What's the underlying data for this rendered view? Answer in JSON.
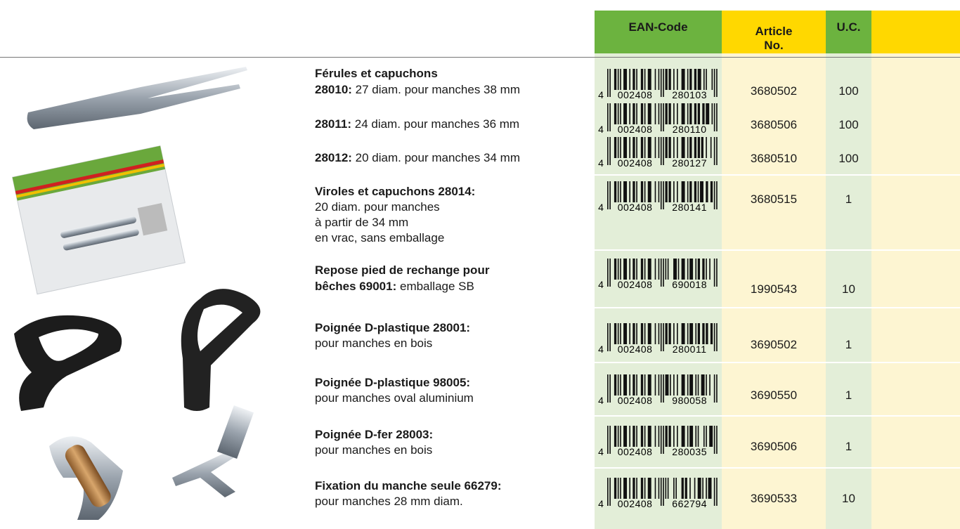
{
  "header": {
    "ean": "EAN-Code",
    "article": [
      "Article",
      "No."
    ],
    "uc": "U.C."
  },
  "rows": [
    {
      "lines": [
        {
          "bold": "Férules et capuchons"
        },
        {
          "bold": "28010:",
          "text": "27 diam. pour manches 38 mm"
        }
      ],
      "ean": {
        "lead": "4",
        "left": "002408",
        "right": "280103"
      },
      "article": 3680502,
      "uc": 100
    },
    {
      "lines": [
        {
          "bold": "28011:",
          "text": "24 diam. pour manches 36 mm"
        }
      ],
      "ean": {
        "lead": "4",
        "left": "002408",
        "right": "280110"
      },
      "article": 3680506,
      "uc": 100
    },
    {
      "lines": [
        {
          "bold": "28012:",
          "text": "20 diam. pour manches 34 mm"
        }
      ],
      "ean": {
        "lead": "4",
        "left": "002408",
        "right": "280127"
      },
      "article": 3680510,
      "uc": 100
    },
    {
      "lines": [
        {
          "bold": "Viroles et capuchons 28014:"
        },
        {
          "text": "20 diam. pour manches"
        },
        {
          "text": "à partir de 34 mm"
        },
        {
          "text": "en vrac, sans emballage"
        }
      ],
      "ean": {
        "lead": "4",
        "left": "002408",
        "right": "280141"
      },
      "article": 3680515,
      "uc": 1
    },
    {
      "lines": [
        {
          "bold": "Repose pied de rechange pour"
        },
        {
          "bold": "bêches 69001:",
          "text": "emballage SB"
        }
      ],
      "ean": {
        "lead": "4",
        "left": "002408",
        "right": "690018"
      },
      "article": 1990543,
      "uc": 10
    },
    {
      "lines": [
        {
          "bold": "Poignée D-plastique 28001:"
        },
        {
          "text": "pour manches en bois"
        }
      ],
      "ean": {
        "lead": "4",
        "left": "002408",
        "right": "280011"
      },
      "article": 3690502,
      "uc": 1
    },
    {
      "lines": [
        {
          "bold": "Poignée D-plastique 98005:"
        },
        {
          "text": "pour manches oval aluminium"
        }
      ],
      "ean": {
        "lead": "4",
        "left": "002408",
        "right": "980058"
      },
      "article": 3690550,
      "uc": 1
    },
    {
      "lines": [
        {
          "bold": "Poignée D-fer 28003:"
        },
        {
          "text": "pour manches en bois"
        }
      ],
      "ean": {
        "lead": "4",
        "left": "002408",
        "right": "280035"
      },
      "article": 3690506,
      "uc": 1
    },
    {
      "lines": [
        {
          "bold": "Fixation du manche seule 66279:"
        },
        {
          "text": "pour manches 28 mm diam."
        }
      ],
      "ean": {
        "lead": "4",
        "left": "002408",
        "right": "662794"
      },
      "article": 3690533,
      "uc": 10
    }
  ]
}
